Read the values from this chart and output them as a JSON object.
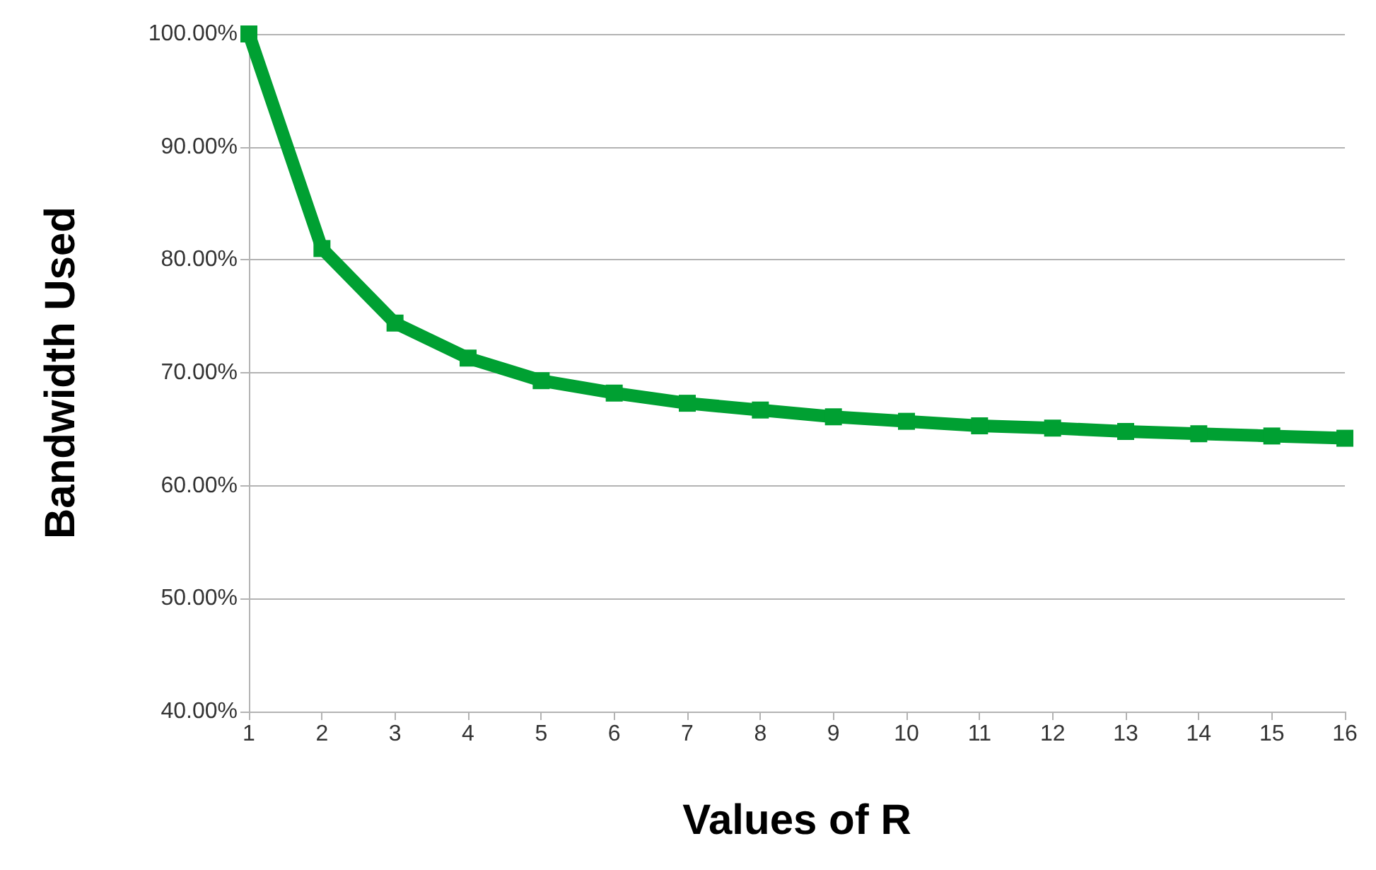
{
  "chart_data": {
    "type": "line",
    "xlabel": "Values of R",
    "ylabel": "Bandwidth Used",
    "x": [
      1,
      2,
      3,
      4,
      5,
      6,
      7,
      8,
      9,
      10,
      11,
      12,
      13,
      14,
      15,
      16
    ],
    "series": [
      {
        "color": "#00a032",
        "values": [
          100,
          81.0,
          74.4,
          71.3,
          69.3,
          68.2,
          67.3,
          66.7,
          66.1,
          65.7,
          65.3,
          65.1,
          64.8,
          64.6,
          64.4,
          64.2
        ]
      }
    ],
    "xlim": [
      1,
      16
    ],
    "xticks": [
      1,
      2,
      3,
      4,
      5,
      6,
      7,
      8,
      9,
      10,
      11,
      12,
      13,
      14,
      15,
      16
    ],
    "ylim": [
      40,
      100
    ],
    "yticks": [
      {
        "value": 40,
        "label": "40.00%"
      },
      {
        "value": 50,
        "label": "50.00%"
      },
      {
        "value": 60,
        "label": "60.00%"
      },
      {
        "value": 70,
        "label": "70.00%"
      },
      {
        "value": 80,
        "label": "80.00%"
      },
      {
        "value": 90,
        "label": "90.00%"
      },
      {
        "value": 100,
        "label": "100.00%"
      }
    ],
    "grid": "y",
    "marker": "square",
    "line_style": "solid"
  }
}
